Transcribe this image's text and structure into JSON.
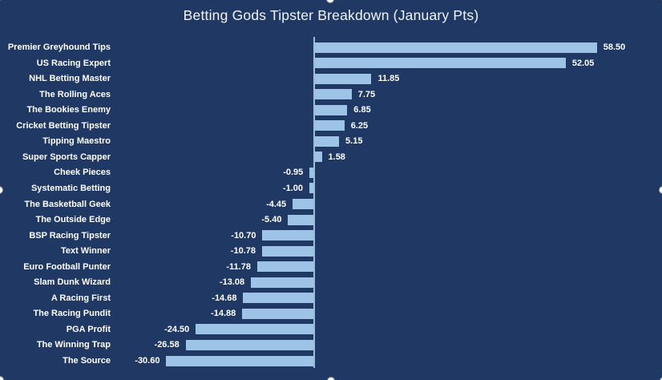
{
  "window": {
    "background_color": "#1F3864"
  },
  "chart_data": {
    "type": "bar",
    "orientation": "horizontal",
    "title": "Betting Gods Tipster Breakdown (January Pts)",
    "categories": [
      "Premier Greyhound Tips",
      "US Racing Expert",
      "NHL Betting Master",
      "The Rolling Aces",
      "The Bookies Enemy",
      "Cricket Betting Tipster",
      "Tipping Maestro",
      "Super Sports Capper",
      "Cheek Pieces",
      "Systematic Betting",
      "The Basketball Geek",
      "The Outside Edge",
      "BSP Racing Tipster",
      "Text Winner",
      "Euro Football Punter",
      "Slam Dunk Wizard",
      "A Racing First",
      "The Racing Pundit",
      "PGA Profit",
      "The Winning Trap",
      "The Source"
    ],
    "values": [
      58.5,
      52.05,
      11.85,
      7.75,
      6.85,
      6.25,
      5.15,
      1.58,
      -0.95,
      -1.0,
      -4.45,
      -5.4,
      -10.7,
      -10.78,
      -11.78,
      -13.08,
      -14.68,
      -14.88,
      -24.5,
      -26.58,
      -30.6
    ],
    "value_labels": [
      "58.50",
      "52.05",
      "11.85",
      "7.75",
      "6.85",
      "6.25",
      "5.15",
      "1.58",
      "-0.95",
      "-1.00",
      "-4.45",
      "-5.40",
      "-10.70",
      "-10.78",
      "-11.78",
      "-13.08",
      "-14.68",
      "-14.88",
      "-24.50",
      "-26.58",
      "-30.60"
    ],
    "xlabel": "",
    "ylabel": "",
    "data_labels": "outside-end",
    "gridlines": false,
    "legend": "none",
    "bar_color": "#9DC3E6",
    "background_color": "#1F3864",
    "axis_line_color": "#9FBBDC",
    "text_color": "#FFFFFF"
  },
  "selection": {
    "object_selected": true,
    "handles": [
      "top-left",
      "top-center",
      "top-right",
      "left-center",
      "right-center",
      "bottom-left",
      "bottom-center",
      "bottom-right"
    ]
  }
}
